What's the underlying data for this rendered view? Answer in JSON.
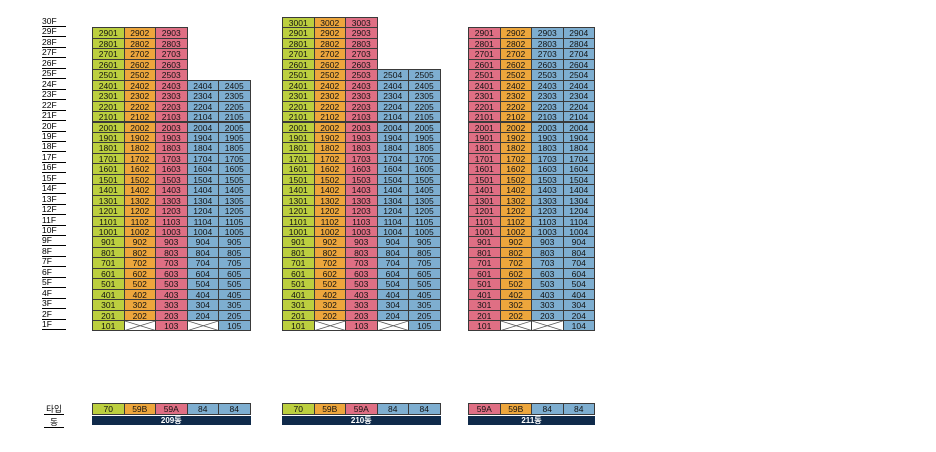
{
  "floor_labels": [
    "30F",
    "29F",
    "28F",
    "27F",
    "26F",
    "25F",
    "24F",
    "23F",
    "22F",
    "21F",
    "20F",
    "19F",
    "18F",
    "17F",
    "16F",
    "15F",
    "14F",
    "13F",
    "12F",
    "11F",
    "10F",
    "9F",
    "8F",
    "7F",
    "6F",
    "5F",
    "4F",
    "3F",
    "2F",
    "1F"
  ],
  "row_labels": {
    "type": "타입",
    "dong": "동"
  },
  "colors": {
    "70": "#bccf3f",
    "59B": "#eda63c",
    "59A": "#df6f84",
    "84": "#7eaed0",
    "dong_bar": "#0f2a4a"
  },
  "buildings": [
    {
      "dong": "209동",
      "types": [
        "70",
        "59B",
        "59A",
        "84",
        "84"
      ],
      "columns": [
        {
          "type": "70",
          "top": 29
        },
        {
          "type": "59B",
          "top": 29
        },
        {
          "type": "59A",
          "top": 29
        },
        {
          "type": "84",
          "top": 24
        },
        {
          "type": "84",
          "top": 24
        }
      ],
      "empty_1f": [
        2,
        4
      ]
    },
    {
      "dong": "210동",
      "types": [
        "70",
        "59B",
        "59A",
        "84",
        "84"
      ],
      "columns": [
        {
          "type": "70",
          "top": 30
        },
        {
          "type": "59B",
          "top": 30
        },
        {
          "type": "59A",
          "top": 30
        },
        {
          "type": "84",
          "top": 25
        },
        {
          "type": "84",
          "top": 25
        }
      ],
      "empty_1f": [
        2,
        4
      ]
    },
    {
      "dong": "211동",
      "types": [
        "59A",
        "59B",
        "84",
        "84"
      ],
      "columns": [
        {
          "type": "59A",
          "top": 29
        },
        {
          "type": "59B",
          "top": 29
        },
        {
          "type": "84",
          "top": 29
        },
        {
          "type": "84",
          "top": 29
        }
      ],
      "empty_1f": [
        2,
        3
      ]
    }
  ]
}
